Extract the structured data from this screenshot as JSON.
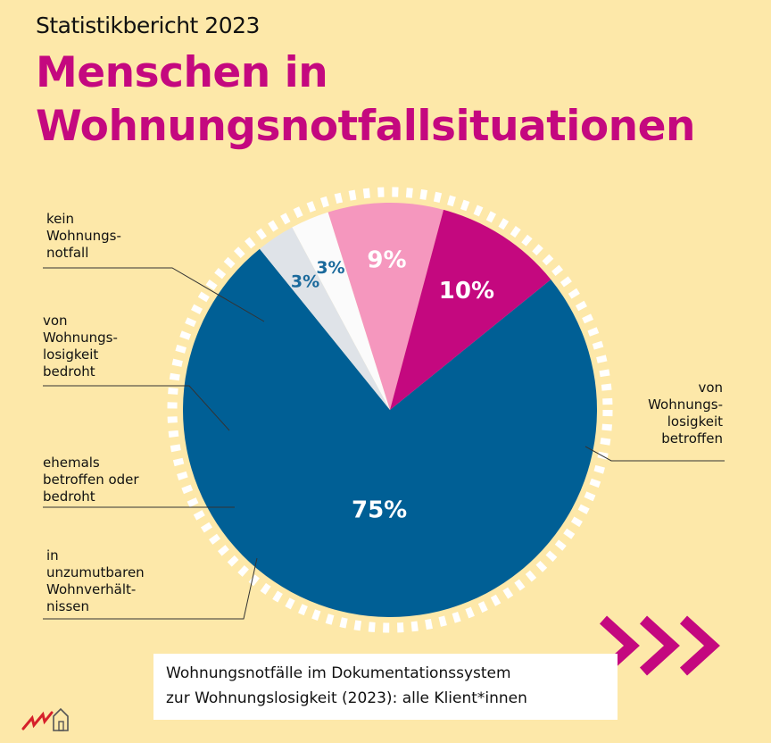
{
  "header": {
    "kicker": "Statistikbericht 2023",
    "title_lines": [
      "Menschen in",
      "Wohnungsnotfallsituationen"
    ]
  },
  "chart_data": {
    "type": "pie",
    "title": "Menschen in Wohnungsnotfallsituationen",
    "slices": [
      {
        "name": "von Wohnungslosigkeit betroffen",
        "value": 75,
        "label": "75%",
        "color": "#005f95",
        "label_color": "#ffffff"
      },
      {
        "name": "in unzumutbaren Wohnverhältnissen",
        "value": 3,
        "label": "3%",
        "color": "#dfe3e8",
        "label_color": "#1b6a9c"
      },
      {
        "name": "ehemals betroffen oder bedroht",
        "value": 3,
        "label": "3%",
        "color": "#fbfbfb",
        "label_color": "#1b6a9c"
      },
      {
        "name": "von Wohnungslosigkeit bedroht",
        "value": 9,
        "label": "9%",
        "color": "#f597be",
        "label_color": "#ffffff"
      },
      {
        "name": "kein Wohnungsnotfall",
        "value": 10,
        "label": "10%",
        "color": "#c4087f",
        "label_color": "#ffffff"
      }
    ],
    "start_angle_deg": -39,
    "direction": "clockwise",
    "ring_style": "dashed-white",
    "labels": {
      "kein_notfall": [
        "kein",
        "Wohnungs-",
        "notfall"
      ],
      "bedroht": [
        "von",
        "Wohnungs-",
        "losigkeit",
        "bedroht"
      ],
      "ehemals": [
        "ehemals",
        "betroffen oder",
        "bedroht"
      ],
      "unzumutbar": [
        "in",
        "unzumutbaren",
        "Wohnverhält-",
        "nissen"
      ],
      "betroffen": [
        "von",
        "Wohnungs-",
        "losigkeit",
        "betroffen"
      ]
    }
  },
  "source": {
    "lines": [
      "Wohnungsnotfälle im Dokumentationssystem",
      "zur Wohnungslosigkeit (2023): alle Klient*innen"
    ]
  },
  "colors": {
    "background": "#fde8a9",
    "accent": "#c4087f",
    "leader_line": "#333333"
  },
  "icons": {
    "arrows": "triple-chevron-right-icon",
    "logo": "house-logo-icon"
  }
}
